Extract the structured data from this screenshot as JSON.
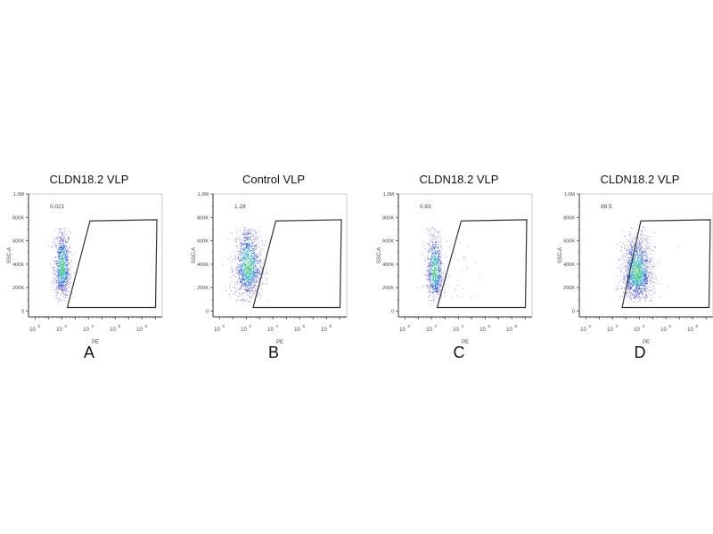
{
  "chart_data": [
    {
      "type": "scatter",
      "title": "CLDN18.2 VLP",
      "panel_label": "A",
      "xlabel": "PE",
      "ylabel": "SSC-A",
      "x_scale": "log",
      "xlim_log10": [
        -0.5,
        9.5
      ],
      "ylim": [
        -50000,
        1000000
      ],
      "x_ticks": [
        {
          "exp": "0",
          "v": 0
        },
        {
          "exp": "2",
          "v": 2
        },
        {
          "exp": "4",
          "v": 4
        },
        {
          "exp": "6",
          "v": 6
        },
        {
          "exp": "8",
          "v": 8
        }
      ],
      "y_ticks": [
        {
          "label": "0",
          "v": 0
        },
        {
          "label": "200K",
          "v": 200000
        },
        {
          "label": "400K",
          "v": 400000
        },
        {
          "label": "600K",
          "v": 600000
        },
        {
          "label": "800K",
          "v": 800000
        },
        {
          "label": "1.0M",
          "v": 1000000
        }
      ],
      "gate": {
        "vertices_log10PE_SSC": [
          [
            2.4,
            30000
          ],
          [
            4.1,
            770000
          ],
          [
            9.1,
            780000
          ],
          [
            9.0,
            30000
          ]
        ],
        "percent": "0.021"
      },
      "population": {
        "center_log10PE": 2.0,
        "center_SSC": 360000,
        "sd_log10PE": 0.3,
        "sd_SSC": 150000,
        "n": 900,
        "outliers": 0
      }
    },
    {
      "type": "scatter",
      "title": "Control VLP",
      "panel_label": "B",
      "xlabel": "PE",
      "ylabel": "SSC-A",
      "x_scale": "log",
      "xlim_log10": [
        -0.5,
        9.5
      ],
      "ylim": [
        -50000,
        1000000
      ],
      "x_ticks": [
        {
          "exp": "0",
          "v": 0
        },
        {
          "exp": "2",
          "v": 2
        },
        {
          "exp": "4",
          "v": 4
        },
        {
          "exp": "6",
          "v": 6
        },
        {
          "exp": "8",
          "v": 8
        }
      ],
      "y_ticks": [
        {
          "label": "0",
          "v": 0
        },
        {
          "label": "200K",
          "v": 200000
        },
        {
          "label": "400K",
          "v": 400000
        },
        {
          "label": "600K",
          "v": 600000
        },
        {
          "label": "800K",
          "v": 800000
        },
        {
          "label": "1.0M",
          "v": 1000000
        }
      ],
      "gate": {
        "vertices_log10PE_SSC": [
          [
            2.5,
            30000
          ],
          [
            4.2,
            770000
          ],
          [
            9.1,
            780000
          ],
          [
            9.0,
            30000
          ]
        ],
        "percent": "1.28"
      },
      "population": {
        "center_log10PE": 2.1,
        "center_SSC": 370000,
        "sd_log10PE": 0.5,
        "sd_SSC": 160000,
        "n": 1200,
        "outliers": 0
      }
    },
    {
      "type": "scatter",
      "title": "CLDN18.2 VLP",
      "panel_label": "C",
      "xlabel": "PE",
      "ylabel": "SSC-A",
      "x_scale": "log",
      "xlim_log10": [
        -0.5,
        9.5
      ],
      "ylim": [
        -50000,
        1000000
      ],
      "x_ticks": [
        {
          "exp": "0",
          "v": 0
        },
        {
          "exp": "2",
          "v": 2
        },
        {
          "exp": "4",
          "v": 4
        },
        {
          "exp": "6",
          "v": 6
        },
        {
          "exp": "8",
          "v": 8
        }
      ],
      "y_ticks": [
        {
          "label": "0",
          "v": 0
        },
        {
          "label": "200K",
          "v": 200000
        },
        {
          "label": "400K",
          "v": 400000
        },
        {
          "label": "600K",
          "v": 600000
        },
        {
          "label": "800K",
          "v": 800000
        },
        {
          "label": "1.0M",
          "v": 1000000
        }
      ],
      "gate": {
        "vertices_log10PE_SSC": [
          [
            2.4,
            30000
          ],
          [
            4.2,
            770000
          ],
          [
            9.1,
            780000
          ],
          [
            9.0,
            30000
          ]
        ],
        "percent": "0.83"
      },
      "population": {
        "center_log10PE": 2.2,
        "center_SSC": 330000,
        "sd_log10PE": 0.3,
        "sd_SSC": 150000,
        "n": 800,
        "outliers": 40
      }
    },
    {
      "type": "scatter",
      "title": "CLDN18.2 VLP",
      "panel_label": "D",
      "xlabel": "PE",
      "ylabel": "SSC-A",
      "x_scale": "log",
      "xlim_log10": [
        -0.5,
        9.5
      ],
      "ylim": [
        -50000,
        1000000
      ],
      "x_ticks": [
        {
          "exp": "0",
          "v": 0
        },
        {
          "exp": "2",
          "v": 2
        },
        {
          "exp": "4",
          "v": 4
        },
        {
          "exp": "6",
          "v": 6
        },
        {
          "exp": "8",
          "v": 8
        }
      ],
      "y_ticks": [
        {
          "label": "0",
          "v": 0
        },
        {
          "label": "200K",
          "v": 200000
        },
        {
          "label": "400K",
          "v": 400000
        },
        {
          "label": "600K",
          "v": 600000
        },
        {
          "label": "800K",
          "v": 800000
        },
        {
          "label": "1.0M",
          "v": 1000000
        }
      ],
      "gate": {
        "vertices_log10PE_SSC": [
          [
            2.7,
            30000
          ],
          [
            4.1,
            770000
          ],
          [
            9.3,
            780000
          ],
          [
            9.2,
            30000
          ]
        ],
        "percent": "88.5"
      },
      "population": {
        "center_log10PE": 3.8,
        "center_SSC": 320000,
        "sd_log10PE": 0.55,
        "sd_SSC": 140000,
        "n": 1500,
        "outliers": 8
      }
    }
  ]
}
